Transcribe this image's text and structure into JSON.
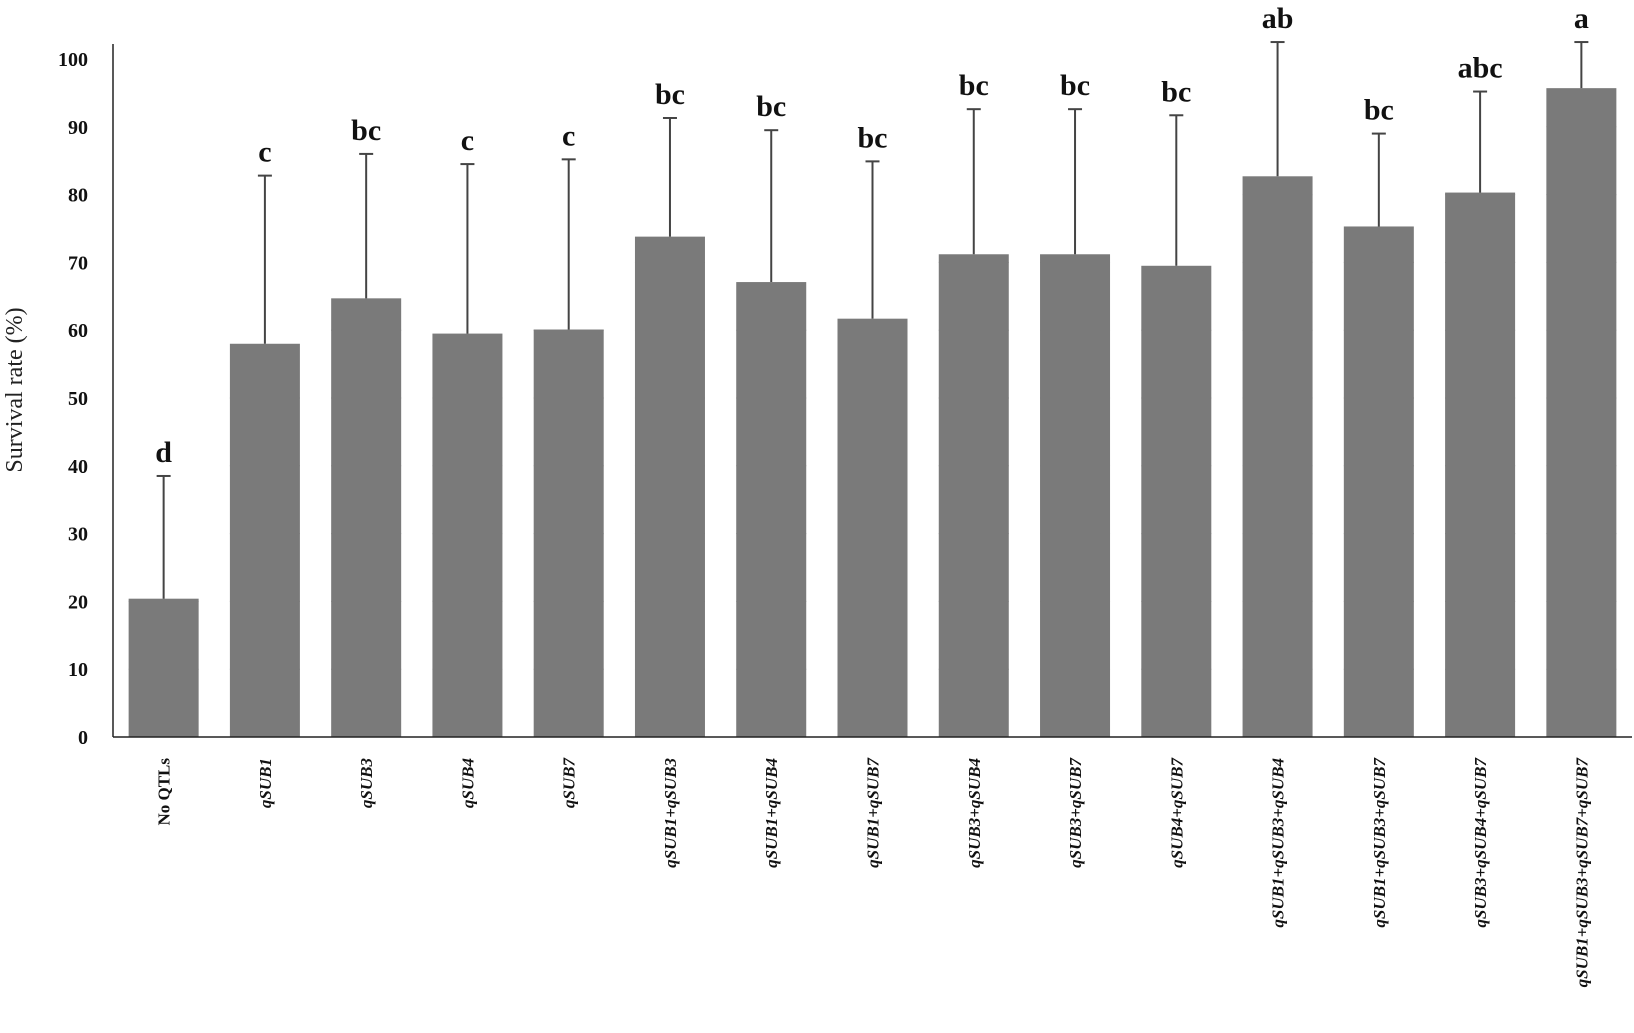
{
  "chart_data": {
    "type": "bar",
    "title": "",
    "xlabel": "",
    "ylabel": "Survival rate (%)",
    "ylim": [
      0,
      100
    ],
    "yticks": [
      "0",
      "10",
      "20",
      "30",
      "40",
      "50",
      "60",
      "70",
      "80",
      "90",
      "100"
    ],
    "bar_color": "#7a7a7a",
    "categories": [
      "No QTLs",
      "qSUB1",
      "qSUB3",
      "qSUB4",
      "qSUB7",
      "qSUB1+qSUB3",
      "qSUB1+qSUB4",
      "qSUB1+qSUB7",
      "qSUB3+qSUB4",
      "qSUB3+qSUB7",
      "qSUB4+qSUB7",
      "qSUB1+qSUB3+qSUB4",
      "qSUB1+qSUB3+qSUB7",
      "qSUB3+qSUB4+qSUB7",
      "qSUB1+qSUB3+qSUB7+qSUB7"
    ],
    "values": [
      20.4,
      58,
      64.7,
      59.5,
      60.1,
      73.8,
      67.1,
      61.7,
      71.2,
      71.2,
      69.5,
      82.7,
      75.3,
      80.3,
      95.7
    ],
    "error_upper": [
      38.5,
      82.8,
      86,
      84.5,
      85.2,
      91.3,
      89.5,
      84.9,
      92.6,
      92.6,
      91.7,
      102.5,
      89,
      95.2,
      102.5
    ],
    "significance": [
      "d",
      "c",
      "bc",
      "c",
      "c",
      "bc",
      "bc",
      "bc",
      "bc",
      "bc",
      "bc",
      "ab",
      "bc",
      "abc",
      "a"
    ]
  }
}
